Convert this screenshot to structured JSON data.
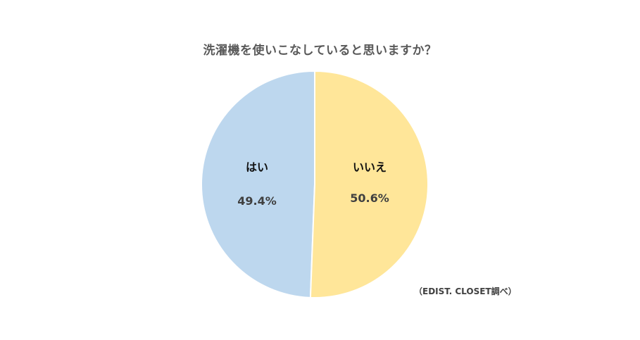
{
  "chart_data": {
    "type": "pie",
    "title": "洗濯機を使いこなしていると思いますか？",
    "categories": [
      "はい",
      "いいえ"
    ],
    "values": [
      49.4,
      50.6
    ],
    "value_labels": [
      "49.4%",
      "50.6%"
    ],
    "colors": [
      "#bdd7ee",
      "#ffe699"
    ],
    "legend": "none",
    "source": "（EDIST. CLOSET調べ）"
  }
}
